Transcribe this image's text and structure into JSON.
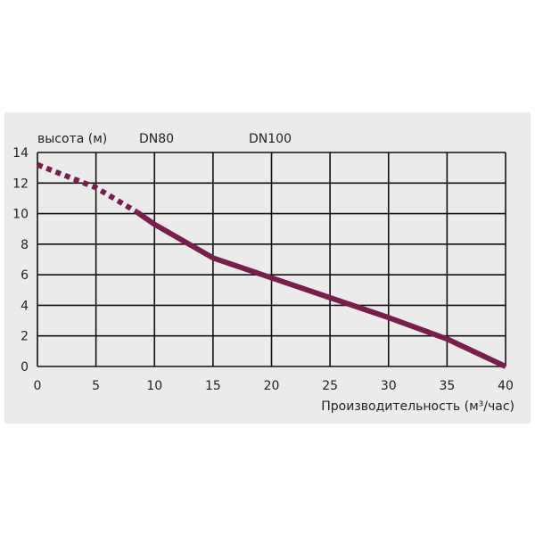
{
  "chart_data": {
    "type": "line",
    "title": "",
    "ylabel": "высота (м)",
    "xlabel": "Производительность (м³/час)",
    "annotations": [
      "DN80",
      "DN100"
    ],
    "xlim": [
      0,
      40
    ],
    "ylim": [
      0,
      14
    ],
    "xticks": [
      0,
      5,
      10,
      15,
      20,
      25,
      30,
      35,
      40
    ],
    "yticks": [
      0,
      2,
      4,
      6,
      8,
      10,
      12,
      14
    ],
    "grid": true,
    "line_color": "#7a1c4c",
    "series": [
      {
        "style": "dotted",
        "x": [
          0,
          5,
          8.5
        ],
        "y": [
          13.2,
          11.7,
          10.1
        ]
      },
      {
        "style": "solid",
        "x": [
          8.5,
          10,
          15,
          20,
          25,
          30,
          35,
          40
        ],
        "y": [
          10.1,
          9.3,
          7.1,
          5.8,
          4.5,
          3.2,
          1.8,
          0
        ]
      }
    ]
  }
}
